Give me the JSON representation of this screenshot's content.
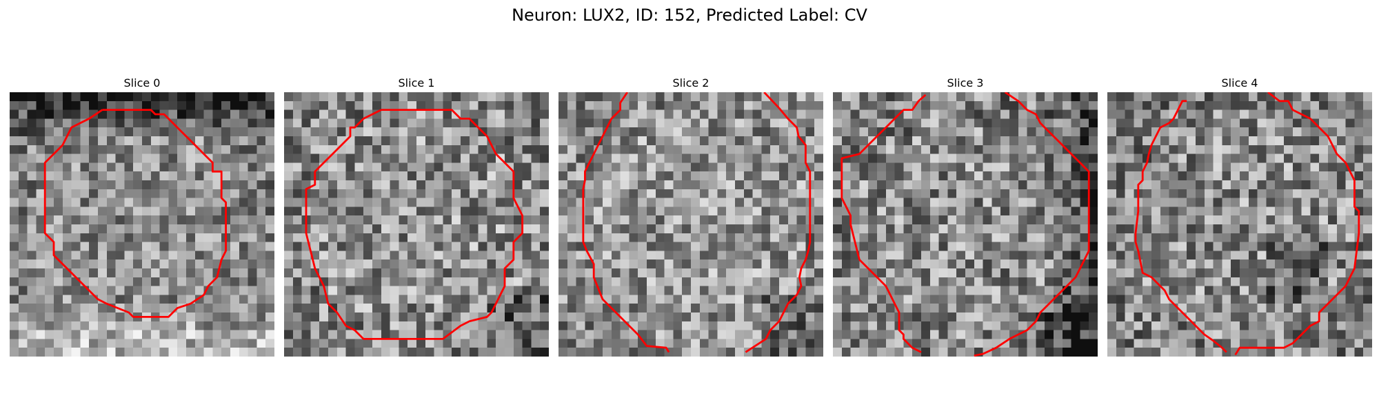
{
  "figure": {
    "title": "Neuron: LUX2, ID: 152, Predicted Label: CV"
  },
  "panels": [
    {
      "label": "Slice 0"
    },
    {
      "label": "Slice 1"
    },
    {
      "label": "Slice 2"
    },
    {
      "label": "Slice 3"
    },
    {
      "label": "Slice 4"
    }
  ],
  "colors": {
    "contour": "#ff0000",
    "background": "#ffffff"
  }
}
